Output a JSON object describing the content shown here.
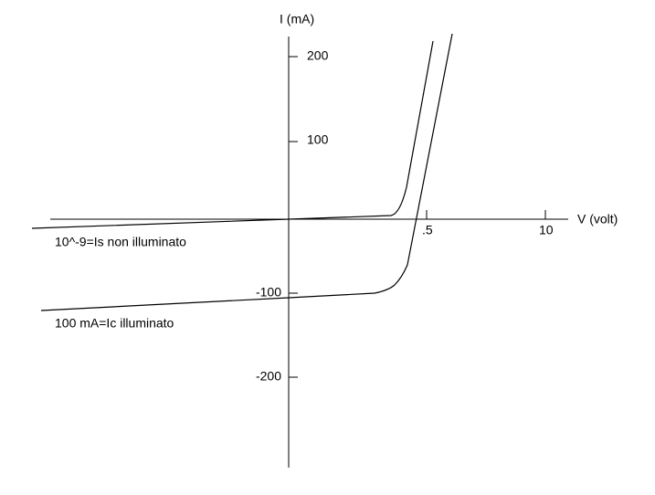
{
  "axes": {
    "y_label": "I (mA)",
    "x_label": "V (volt)",
    "y_ticks": [
      "200",
      "100",
      "-100",
      "-200"
    ],
    "x_ticks": [
      ".5",
      "10"
    ]
  },
  "annotations": [
    "10^-9=Is  non illuminato",
    "100 mA=Ic  illuminato"
  ]
}
